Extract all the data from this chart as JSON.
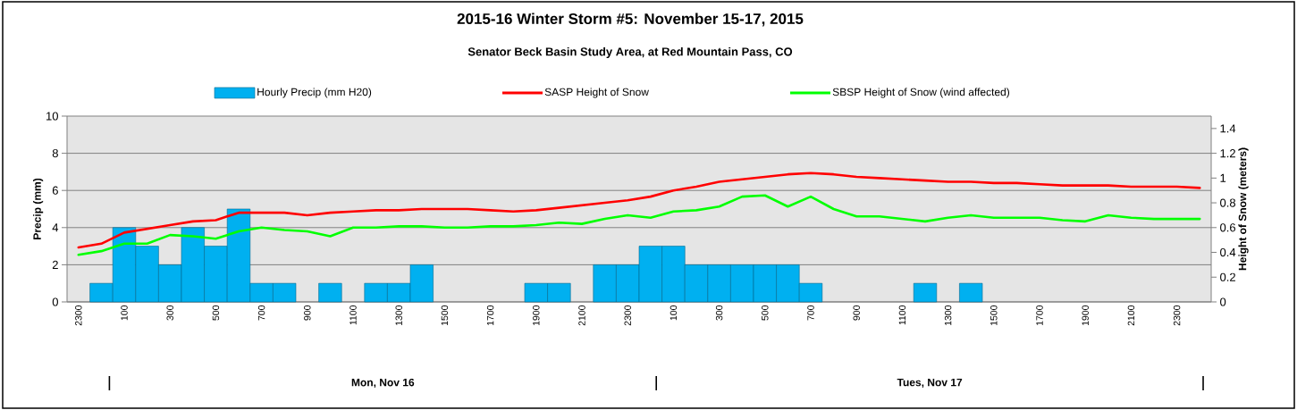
{
  "chart_data": {
    "type": "bar",
    "title": "2015-16 Winter Storm #5:  November 15-17, 2015",
    "subtitle": "Senator Beck Basin Study Area, at Red Mountain Pass, CO",
    "ylabel": "Precip (mm)",
    "y2label": "Height of Snow (meters)",
    "categories": [
      "2300",
      null,
      "100",
      null,
      "300",
      null,
      "500",
      null,
      "700",
      null,
      "900",
      null,
      "1100",
      null,
      "1300",
      null,
      "1500",
      null,
      "1700",
      null,
      "1900",
      null,
      "2100",
      null,
      "2300",
      null,
      "100",
      null,
      "300",
      null,
      "500",
      null,
      "700",
      null,
      "900",
      null,
      "1100",
      null,
      "1300",
      null,
      "1500",
      null,
      "1700",
      null,
      "1900",
      null,
      "2100",
      null,
      "2300",
      null
    ],
    "series": [
      {
        "name": "Hourly Precip (mm H20)",
        "color": "#00b0f0",
        "values": [
          0,
          1,
          4,
          3,
          2,
          4,
          3,
          5,
          1,
          1,
          0,
          1,
          0,
          1,
          1,
          2,
          0,
          0,
          0,
          0,
          1,
          1,
          0,
          2,
          2,
          3,
          3,
          2,
          2,
          2,
          2,
          2,
          1,
          0,
          0,
          0,
          0,
          1,
          0,
          1,
          0,
          0,
          0,
          0,
          0,
          0,
          0,
          0,
          0,
          0
        ]
      },
      {
        "name": "SASP Height of Snow",
        "type": "line",
        "axis": "y2",
        "color": "#ff0000",
        "values": [
          0.44,
          0.47,
          0.56,
          0.59,
          0.62,
          0.65,
          0.66,
          0.72,
          0.72,
          0.72,
          0.7,
          0.72,
          0.73,
          0.74,
          0.74,
          0.75,
          0.75,
          0.75,
          0.74,
          0.73,
          0.74,
          0.76,
          0.78,
          0.8,
          0.82,
          0.85,
          0.9,
          0.93,
          0.97,
          0.99,
          1.01,
          1.03,
          1.04,
          1.03,
          1.01,
          1.0,
          0.99,
          0.98,
          0.97,
          0.97,
          0.96,
          0.96,
          0.95,
          0.94,
          0.94,
          0.94,
          0.93,
          0.93,
          0.93,
          0.92
        ]
      },
      {
        "name": "SBSP Height of Snow (wind affected)",
        "type": "line",
        "axis": "y2",
        "color": "#00ff00",
        "values": [
          0.38,
          0.41,
          0.47,
          0.47,
          0.54,
          0.53,
          0.51,
          0.57,
          0.6,
          0.58,
          0.57,
          0.53,
          0.6,
          0.6,
          0.61,
          0.61,
          0.6,
          0.6,
          0.61,
          0.61,
          0.62,
          0.64,
          0.63,
          0.67,
          0.7,
          0.68,
          0.73,
          0.74,
          0.77,
          0.85,
          0.86,
          0.77,
          0.85,
          0.75,
          0.69,
          0.69,
          0.67,
          0.65,
          0.68,
          0.7,
          0.68,
          0.68,
          0.68,
          0.66,
          0.65,
          0.7,
          0.68,
          0.67,
          0.67,
          0.67
        ]
      }
    ],
    "ylim": [
      0,
      10
    ],
    "yticks": [
      0,
      2,
      4,
      6,
      8,
      10
    ],
    "y2lim": [
      0,
      1.5
    ],
    "y2ticks": [
      0,
      0.2,
      0.4,
      0.6,
      0.8,
      1,
      1.2,
      1.4
    ],
    "grid": "y",
    "legend": "top",
    "annotations": [
      "Mon, Nov 16",
      "Tues, Nov 17"
    ]
  }
}
